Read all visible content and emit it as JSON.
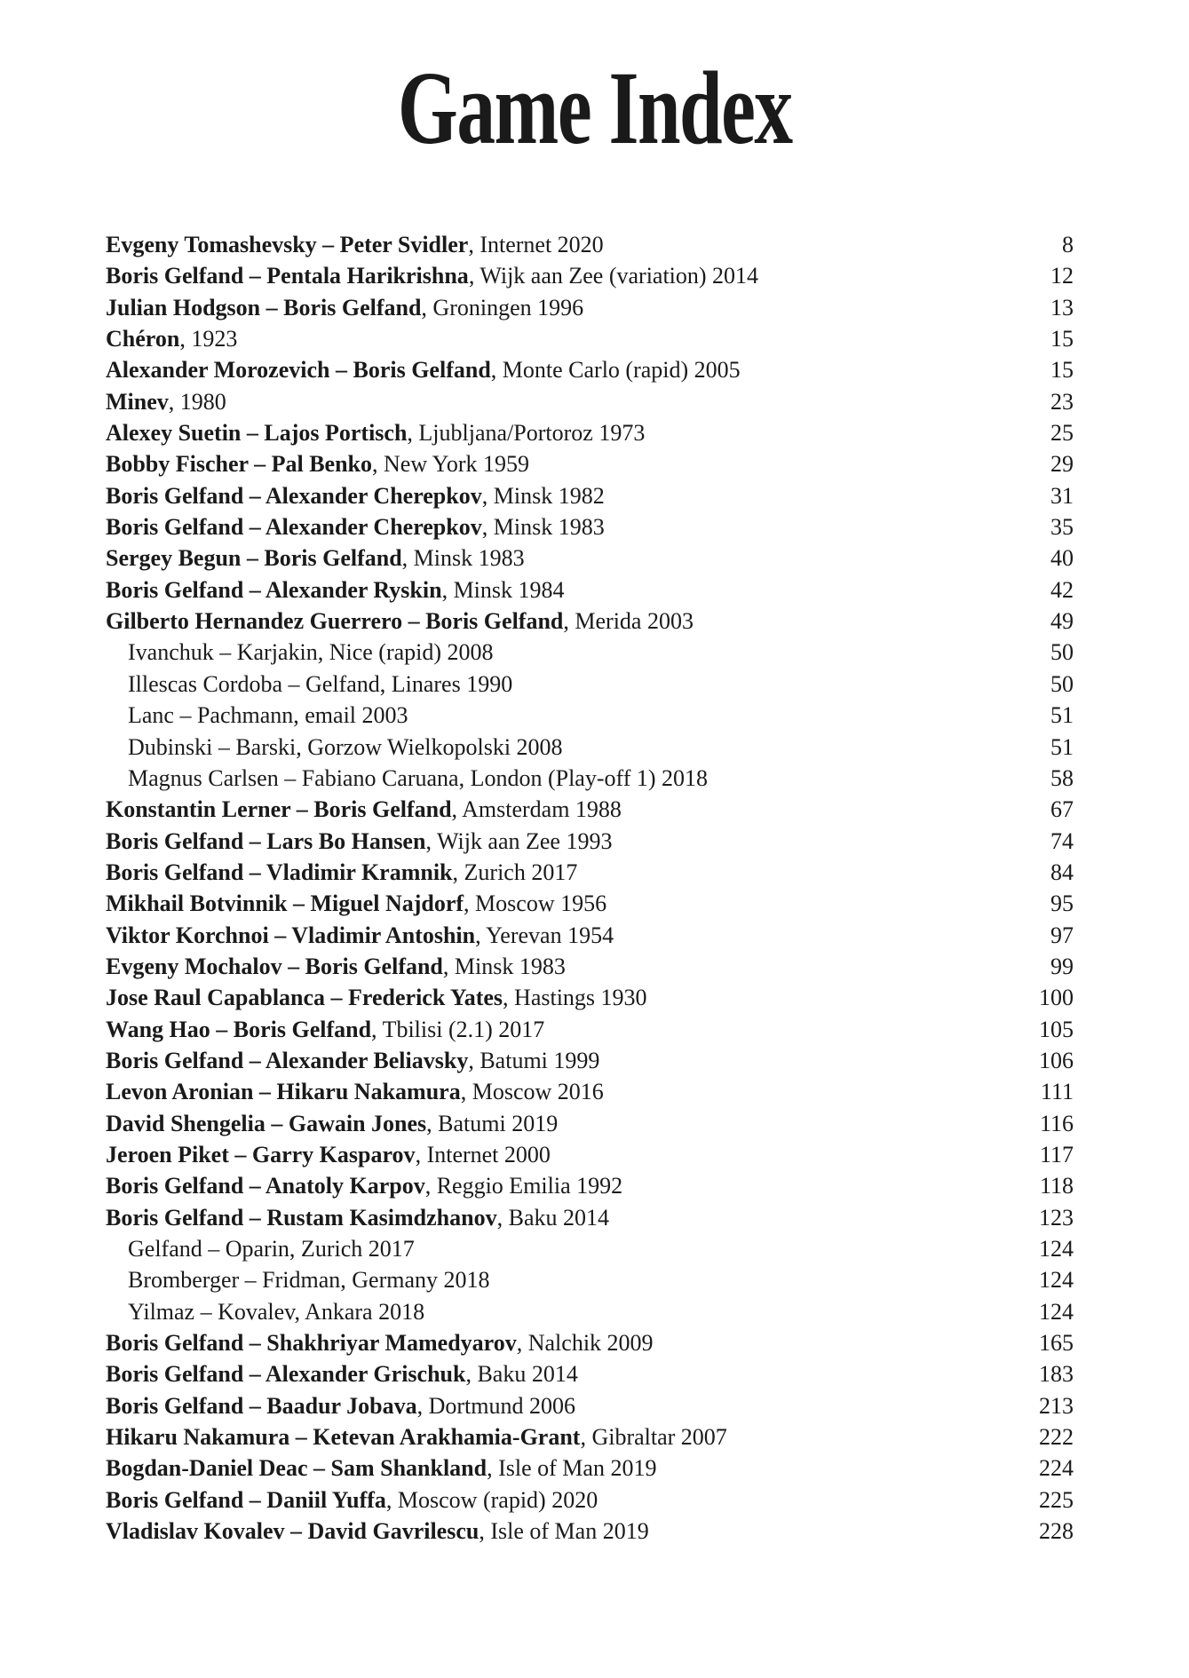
{
  "title": "Game Index",
  "entries": [
    {
      "players": "Evgeny Tomashevsky – Peter Svidler",
      "event": ", Internet 2020",
      "page": "8",
      "sub": false
    },
    {
      "players": "Boris Gelfand – Pentala Harikrishna",
      "event": ", Wijk aan Zee (variation) 2014",
      "page": "12",
      "sub": false
    },
    {
      "players": "Julian Hodgson – Boris Gelfand",
      "event": ", Groningen 1996",
      "page": "13",
      "sub": false
    },
    {
      "players": "Chéron",
      "event": ", 1923",
      "page": "15",
      "sub": false
    },
    {
      "players": "Alexander Morozevich – Boris Gelfand",
      "event": ", Monte Carlo (rapid) 2005",
      "page": "15",
      "sub": false
    },
    {
      "players": "Minev",
      "event": ", 1980",
      "page": "23",
      "sub": false
    },
    {
      "players": "Alexey Suetin – Lajos Portisch",
      "event": ", Ljubljana/Portoroz 1973",
      "page": "25",
      "sub": false
    },
    {
      "players": "Bobby Fischer – Pal Benko",
      "event": ", New York 1959",
      "page": "29",
      "sub": false
    },
    {
      "players": "Boris Gelfand – Alexander Cherepkov",
      "event": ", Minsk 1982",
      "page": "31",
      "sub": false
    },
    {
      "players": "Boris Gelfand – Alexander Cherepkov",
      "event": ", Minsk 1983",
      "page": "35",
      "sub": false
    },
    {
      "players": "Sergey Begun – Boris Gelfand",
      "event": ", Minsk 1983",
      "page": "40",
      "sub": false
    },
    {
      "players": "Boris Gelfand – Alexander Ryskin",
      "event": ", Minsk 1984",
      "page": "42",
      "sub": false
    },
    {
      "players": "Gilberto Hernandez Guerrero – Boris Gelfand",
      "event": ", Merida 2003",
      "page": "49",
      "sub": false
    },
    {
      "players": "",
      "event": "Ivanchuk – Karjakin, Nice (rapid) 2008",
      "page": "50",
      "sub": true
    },
    {
      "players": "",
      "event": "Illescas Cordoba – Gelfand, Linares 1990",
      "page": "50",
      "sub": true
    },
    {
      "players": "",
      "event": "Lanc – Pachmann, email 2003",
      "page": "51",
      "sub": true
    },
    {
      "players": "",
      "event": "Dubinski – Barski, Gorzow Wielkopolski 2008",
      "page": "51",
      "sub": true
    },
    {
      "players": "",
      "event": "Magnus Carlsen – Fabiano Caruana, London (Play-off 1) 2018",
      "page": "58",
      "sub": true
    },
    {
      "players": "Konstantin Lerner – Boris Gelfand",
      "event": ", Amsterdam 1988",
      "page": "67",
      "sub": false
    },
    {
      "players": "Boris Gelfand – Lars Bo Hansen",
      "event": ", Wijk aan Zee 1993",
      "page": "74",
      "sub": false
    },
    {
      "players": "Boris Gelfand – Vladimir Kramnik",
      "event": ", Zurich 2017",
      "page": "84",
      "sub": false
    },
    {
      "players": "Mikhail Botvinnik – Miguel Najdorf",
      "event": ", Moscow 1956",
      "page": "95",
      "sub": false
    },
    {
      "players": "Viktor Korchnoi – Vladimir Antoshin",
      "event": ", Yerevan 1954",
      "page": "97",
      "sub": false
    },
    {
      "players": "Evgeny Mochalov – Boris Gelfand",
      "event": ", Minsk 1983",
      "page": "99",
      "sub": false
    },
    {
      "players": "Jose Raul Capablanca – Frederick Yates",
      "event": ", Hastings 1930",
      "page": "100",
      "sub": false
    },
    {
      "players": "Wang Hao – Boris Gelfand",
      "event": ", Tbilisi (2.1) 2017",
      "page": "105",
      "sub": false
    },
    {
      "players": "Boris Gelfand – Alexander Beliavsky",
      "event": ", Batumi 1999",
      "page": "106",
      "sub": false
    },
    {
      "players": "Levon Aronian – Hikaru Nakamura",
      "event": ", Moscow 2016",
      "page": "111",
      "sub": false
    },
    {
      "players": "David Shengelia – Gawain Jones",
      "event": ", Batumi 2019",
      "page": "116",
      "sub": false
    },
    {
      "players": "Jeroen Piket – Garry Kasparov",
      "event": ", Internet 2000",
      "page": "117",
      "sub": false
    },
    {
      "players": "Boris Gelfand – Anatoly Karpov",
      "event": ", Reggio Emilia 1992",
      "page": "118",
      "sub": false
    },
    {
      "players": "Boris Gelfand – Rustam Kasimdzhanov",
      "event": ", Baku 2014",
      "page": "123",
      "sub": false
    },
    {
      "players": "",
      "event": "Gelfand – Oparin, Zurich 2017",
      "page": "124",
      "sub": true
    },
    {
      "players": "",
      "event": "Bromberger – Fridman, Germany 2018",
      "page": "124",
      "sub": true
    },
    {
      "players": "",
      "event": "Yilmaz – Kovalev, Ankara 2018",
      "page": "124",
      "sub": true
    },
    {
      "players": "Boris Gelfand – Shakhriyar Mamedyarov",
      "event": ", Nalchik 2009",
      "page": "165",
      "sub": false
    },
    {
      "players": "Boris Gelfand – Alexander Grischuk",
      "event": ", Baku 2014",
      "page": "183",
      "sub": false
    },
    {
      "players": "Boris Gelfand – Baadur Jobava",
      "event": ", Dortmund 2006",
      "page": "213",
      "sub": false
    },
    {
      "players": "Hikaru Nakamura – Ketevan Arakhamia-Grant",
      "event": ", Gibraltar 2007",
      "page": "222",
      "sub": false
    },
    {
      "players": "Bogdan-Daniel Deac – Sam Shankland",
      "event": ", Isle of Man 2019",
      "page": "224",
      "sub": false
    },
    {
      "players": "Boris Gelfand – Daniil Yuffa",
      "event": ", Moscow (rapid) 2020",
      "page": "225",
      "sub": false
    },
    {
      "players": "Vladislav Kovalev – David Gavrilescu",
      "event": ", Isle of Man 2019",
      "page": "228",
      "sub": false
    }
  ]
}
